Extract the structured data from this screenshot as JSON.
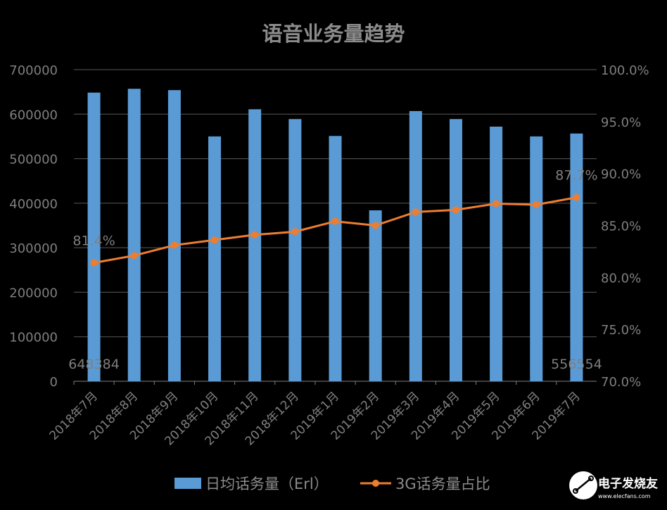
{
  "chart_data": {
    "type": "bar+line",
    "title": "语音业务量趋势",
    "categories": [
      "2018年7月",
      "2018年8月",
      "2018年9月",
      "2018年10月",
      "2018年11月",
      "2018年12月",
      "2019年1月",
      "2019年2月",
      "2019年3月",
      "2019年4月",
      "2019年5月",
      "2019年6月",
      "2019年7月"
    ],
    "series": [
      {
        "name": "日均话务量（Erl）",
        "type": "bar",
        "axis": "left",
        "color": "#5b9bd5",
        "values": [
          648384,
          657000,
          654000,
          550000,
          611000,
          589000,
          551000,
          384000,
          607000,
          589000,
          572000,
          550000,
          556554
        ]
      },
      {
        "name": "3G话务量占比",
        "type": "line",
        "axis": "right",
        "color": "#ed7d31",
        "values": [
          81.4,
          82.1,
          83.1,
          83.6,
          84.1,
          84.4,
          85.4,
          85.0,
          86.3,
          86.5,
          87.1,
          87.0,
          87.7
        ]
      }
    ],
    "left_axis": {
      "ylim": [
        0,
        700000
      ],
      "ticks": [
        "0",
        "100000",
        "200000",
        "300000",
        "400000",
        "500000",
        "600000",
        "700000"
      ]
    },
    "right_axis": {
      "ylim": [
        70,
        100
      ],
      "ticks": [
        "70.0%",
        "75.0%",
        "80.0%",
        "85.0%",
        "90.0%",
        "95.0%",
        "100.0%"
      ]
    },
    "data_labels": {
      "bar_first": "648384",
      "bar_last": "556554",
      "line_first": "81.4%",
      "line_last": "87.7%"
    },
    "grid": true,
    "legend_placement": "bottom"
  },
  "watermark": {
    "name": "电子发烧友",
    "url": "www.elecfans.com"
  }
}
